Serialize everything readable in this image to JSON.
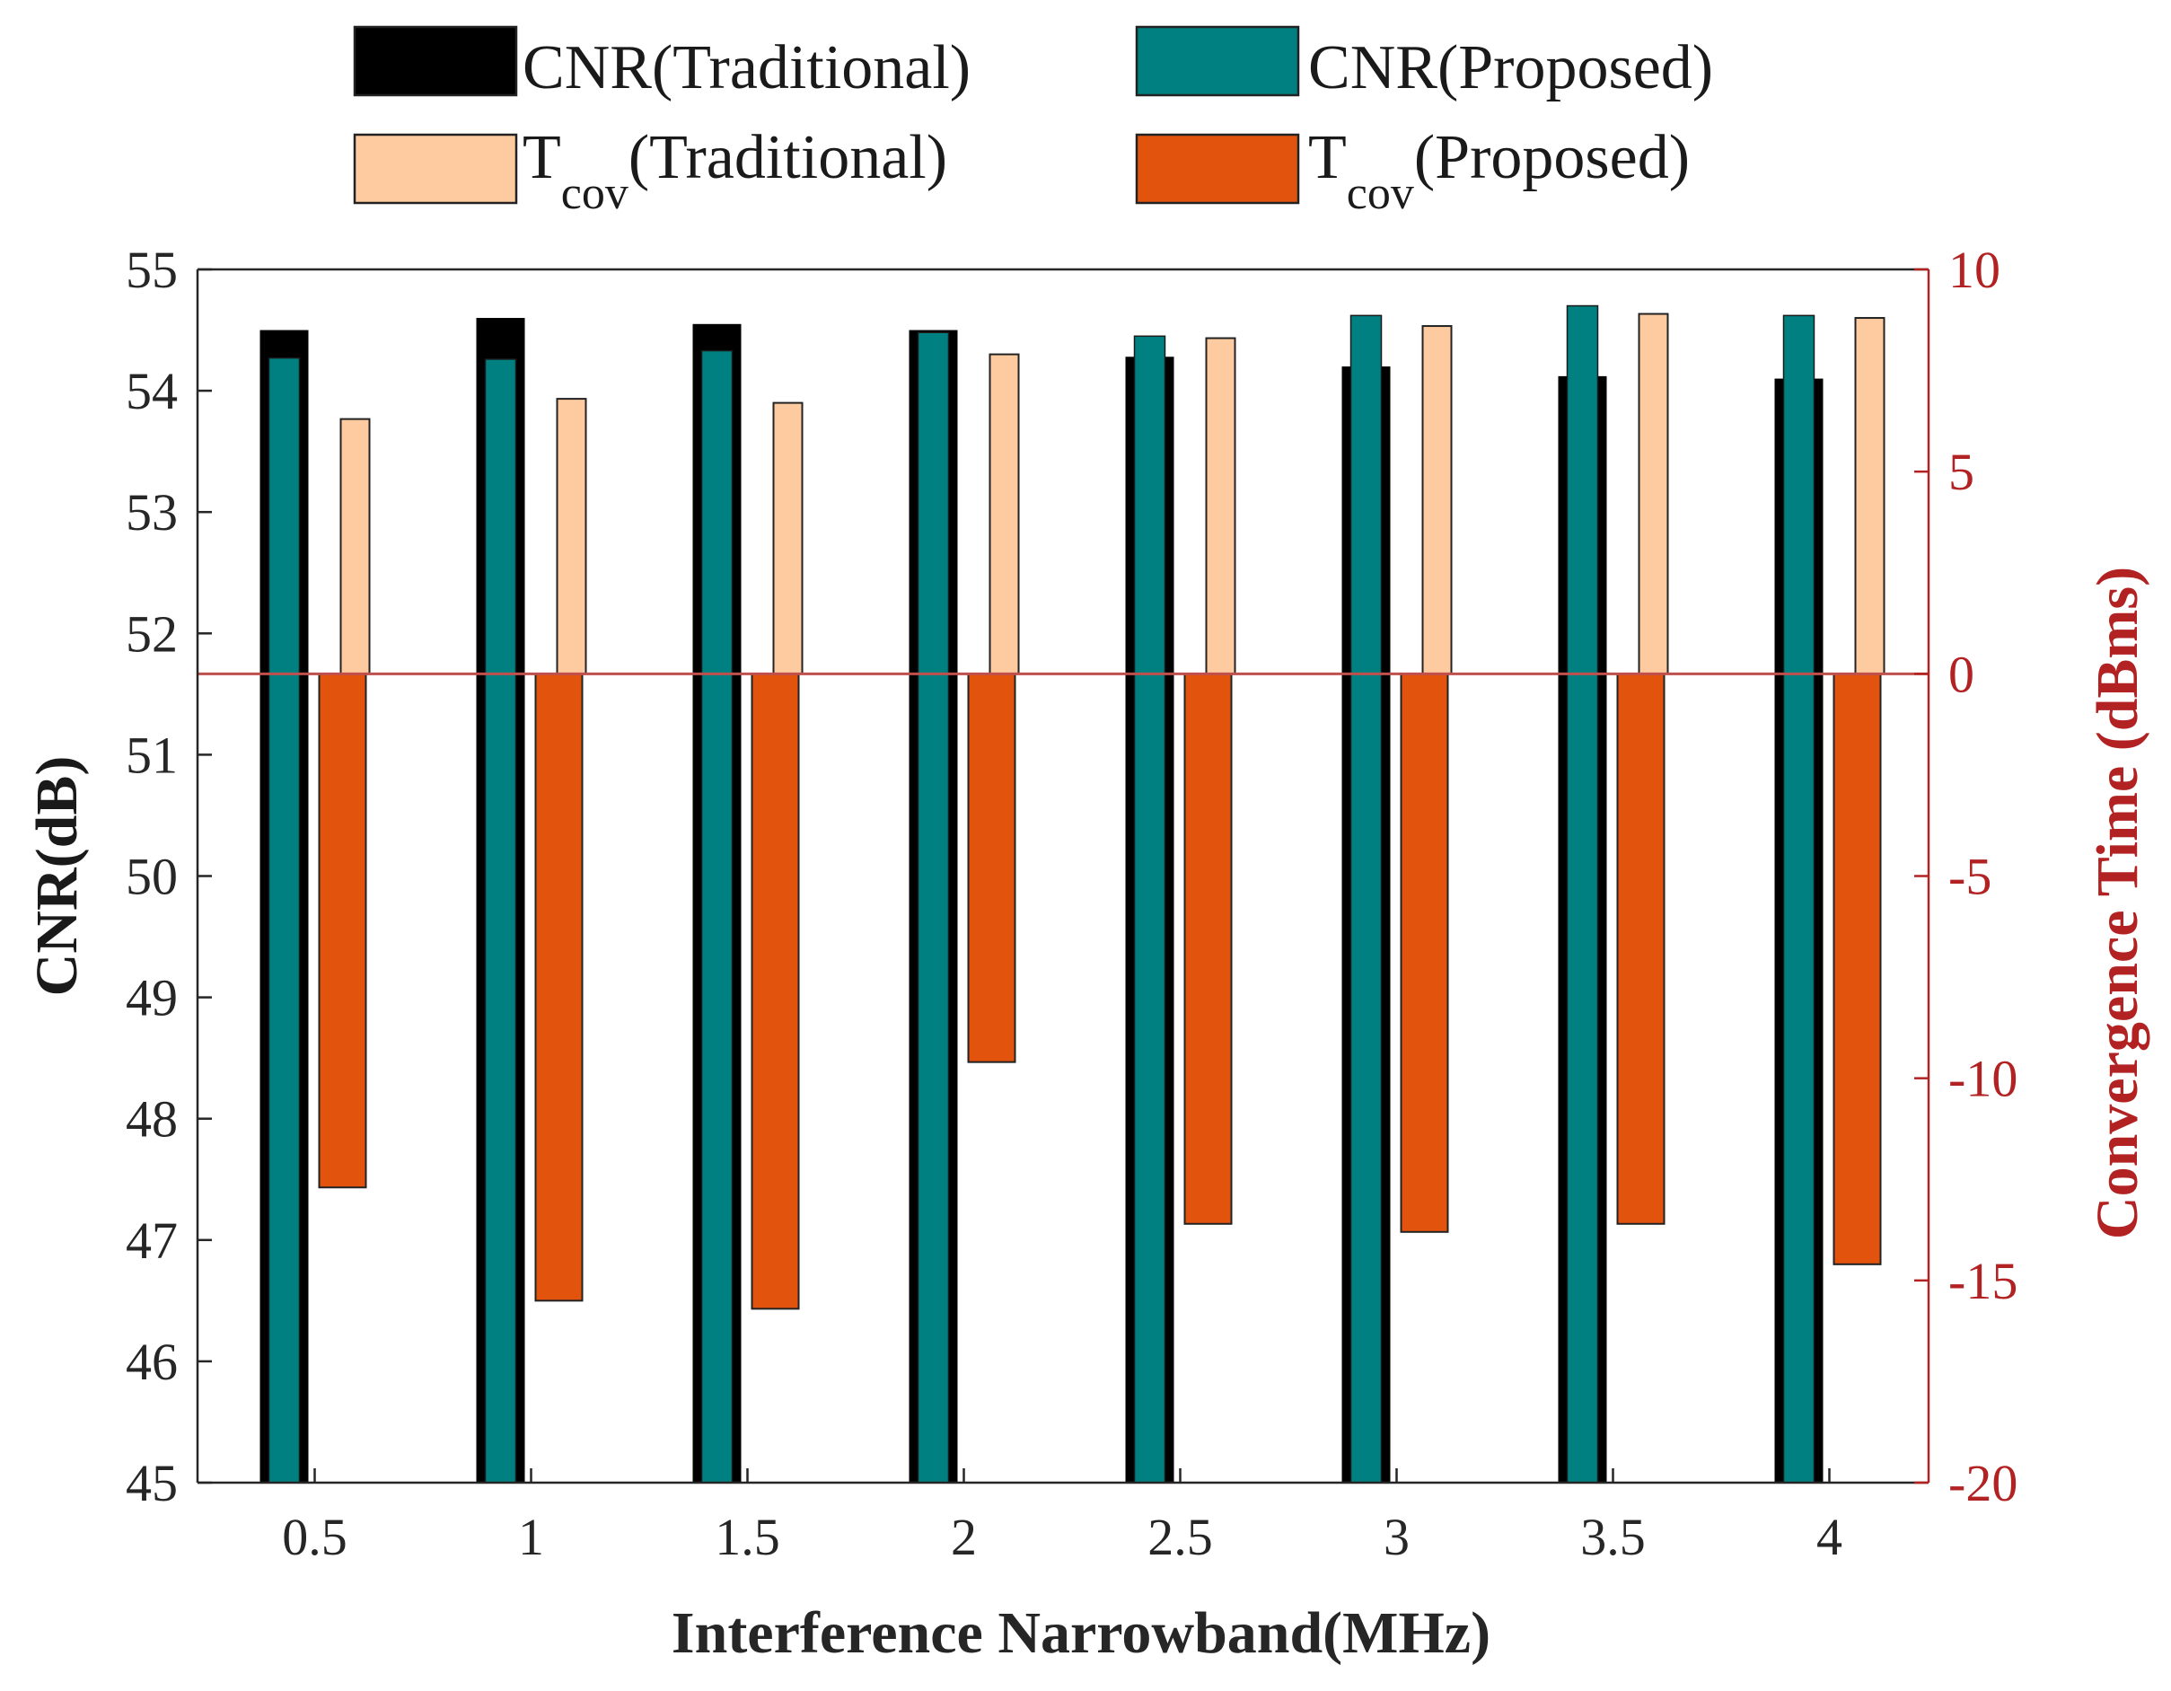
{
  "chart_data": {
    "type": "bar",
    "xlabel": "Interference Narrowband(MHz)",
    "ylabel_left": "CNR(dB)",
    "ylabel_right": "Convergence Time (dBms)",
    "categories": [
      "0.5",
      "1",
      "1.5",
      "2",
      "2.5",
      "3",
      "3.5",
      "4"
    ],
    "left_axis": {
      "min": 45,
      "max": 55,
      "ticks": [
        "45",
        "46",
        "47",
        "48",
        "49",
        "50",
        "51",
        "52",
        "53",
        "54",
        "55"
      ]
    },
    "right_axis": {
      "min": -20,
      "max": 10,
      "ticks": [
        "-20",
        "-15",
        "-10",
        "-5",
        "0",
        "5",
        "10"
      ]
    },
    "zero_line_value": 0,
    "series": [
      {
        "name": "CNR(Traditional)",
        "axis": "left",
        "color": "#000000",
        "values": [
          54.5,
          54.6,
          54.55,
          54.5,
          54.28,
          54.2,
          54.12,
          54.1
        ]
      },
      {
        "name": "CNR(Proposed)",
        "axis": "left",
        "color": "#008080",
        "values": [
          54.27,
          54.26,
          54.33,
          54.48,
          54.45,
          54.62,
          54.7,
          54.62
        ]
      },
      {
        "name": "Tcov(Traditional)",
        "axis": "right",
        "color": "#FDCB9F",
        "values": [
          6.3,
          6.8,
          6.7,
          7.9,
          8.3,
          8.6,
          8.9,
          8.8
        ]
      },
      {
        "name": "Tcov(Proposed)",
        "axis": "right",
        "color": "#E2540E",
        "values": [
          -12.7,
          -15.5,
          -15.7,
          -9.6,
          -13.6,
          -13.8,
          -13.6,
          -14.6
        ]
      }
    ],
    "legend": [
      {
        "text": "CNR(Traditional)",
        "base": "CNR",
        "sub": "",
        "rest": "(Traditional)",
        "color": "#000000"
      },
      {
        "text": "CNR(Proposed)",
        "base": "CNR",
        "sub": "",
        "rest": "(Proposed)",
        "color": "#008080"
      },
      {
        "text": "Tcov(Traditional)",
        "base": "T",
        "sub": "cov",
        "rest": "(Traditional)",
        "color": "#FDCB9F"
      },
      {
        "text": "Tcov(Proposed)",
        "base": "T",
        "sub": "cov",
        "rest": "(Proposed)",
        "color": "#E2540E"
      }
    ],
    "colors": {
      "right_axis": "#B22222",
      "zero_line": "#C0504D",
      "axis": "#262626"
    }
  }
}
